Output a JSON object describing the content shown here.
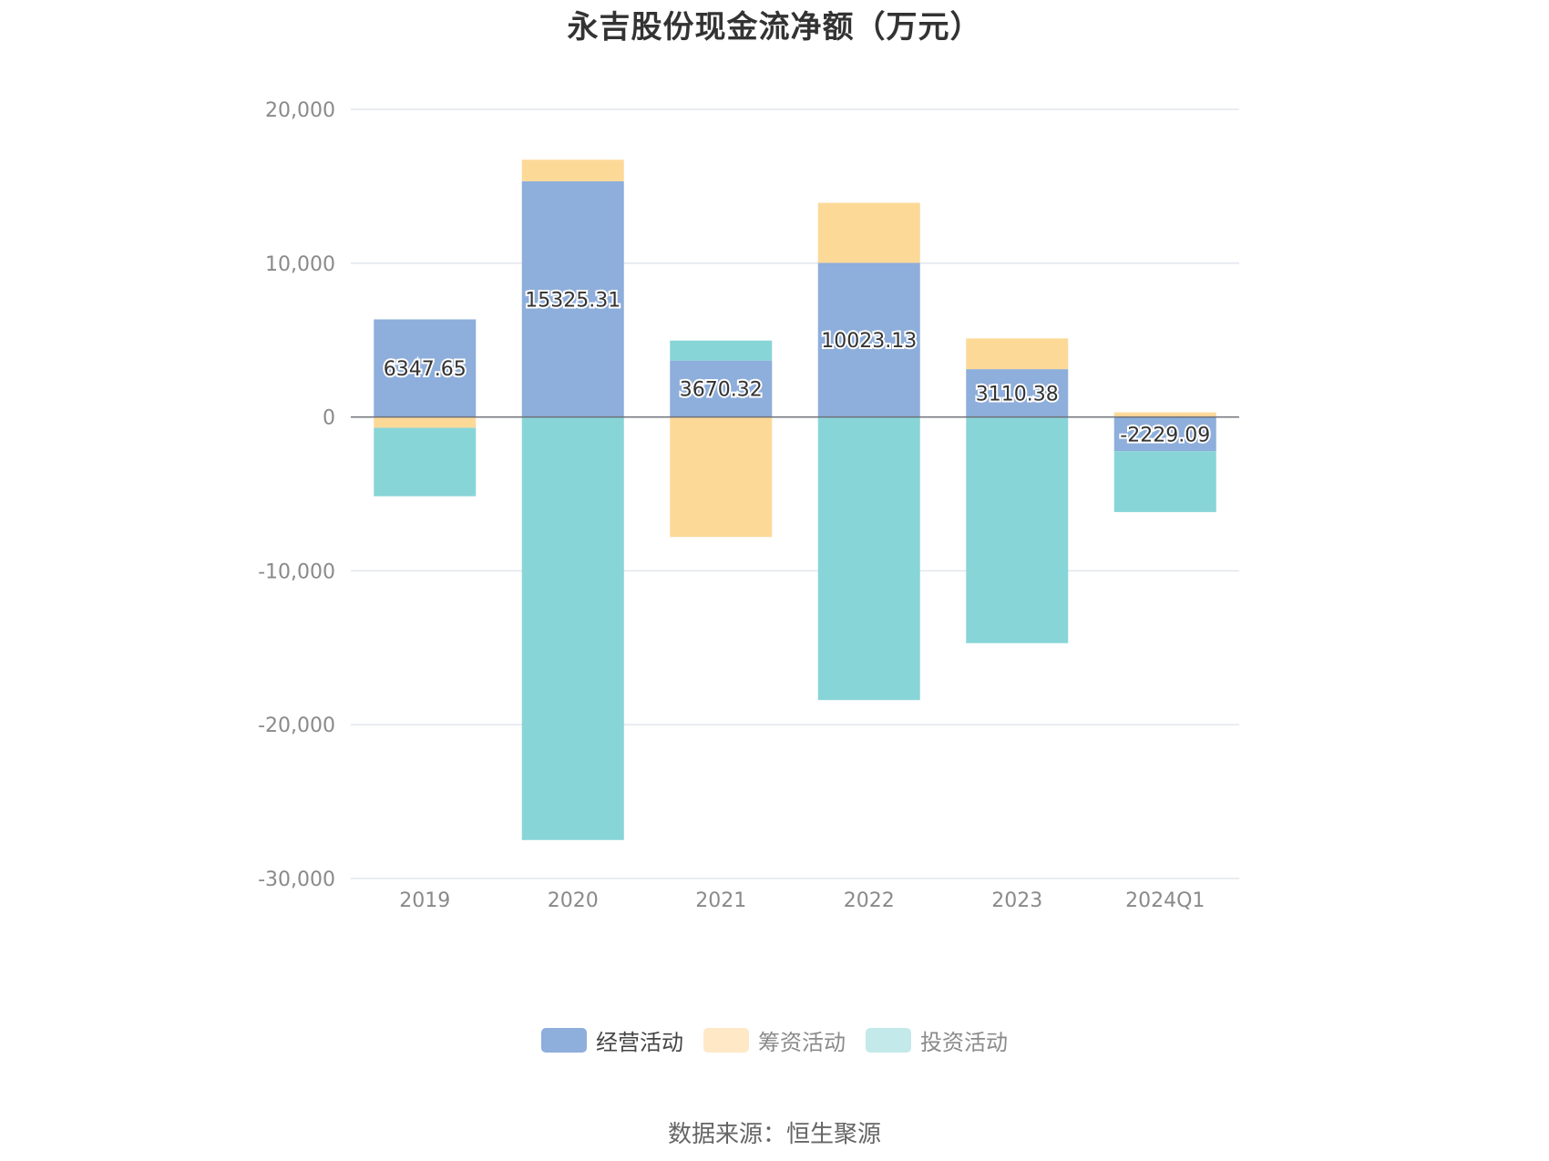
{
  "chart_data": {
    "type": "bar",
    "stacked": true,
    "title": "永吉股份现金流净额（万元）",
    "categories": [
      "2019",
      "2020",
      "2021",
      "2022",
      "2023",
      "2024Q1"
    ],
    "ylim": [
      -30000,
      20000
    ],
    "yticks": [
      20000,
      10000,
      0,
      -10000,
      -20000,
      -30000
    ],
    "ytick_labels": [
      "20,000",
      "10,000",
      "0",
      "-10,000",
      "-20,000",
      "-30,000"
    ],
    "grid": true,
    "legend_position": "bottom",
    "series": [
      {
        "name": "经营活动",
        "color": "#8eaedb",
        "values": [
          6347.65,
          15325.31,
          3670.32,
          10023.13,
          3110.38,
          -2229.09
        ],
        "labels": [
          "6347.65",
          "15325.31",
          "3670.32",
          "10023.13",
          "3110.38",
          "-2229.09"
        ]
      },
      {
        "name": "筹资活动",
        "color": "#fdd998",
        "values": [
          -700,
          1400,
          -7800,
          3900,
          2000,
          300
        ]
      },
      {
        "name": "投资活动",
        "color": "#88d5d8",
        "values": [
          -4450,
          -27500,
          1300,
          -18400,
          -14700,
          -3950
        ]
      }
    ],
    "source": "数据来源：恒生聚源"
  },
  "legend": {
    "items": [
      {
        "label": "经营活动",
        "swatch": "#8eaedb"
      },
      {
        "label": "筹资活动",
        "swatch": "#fee8c6"
      },
      {
        "label": "投资活动",
        "swatch": "#c3e9ea"
      }
    ]
  }
}
